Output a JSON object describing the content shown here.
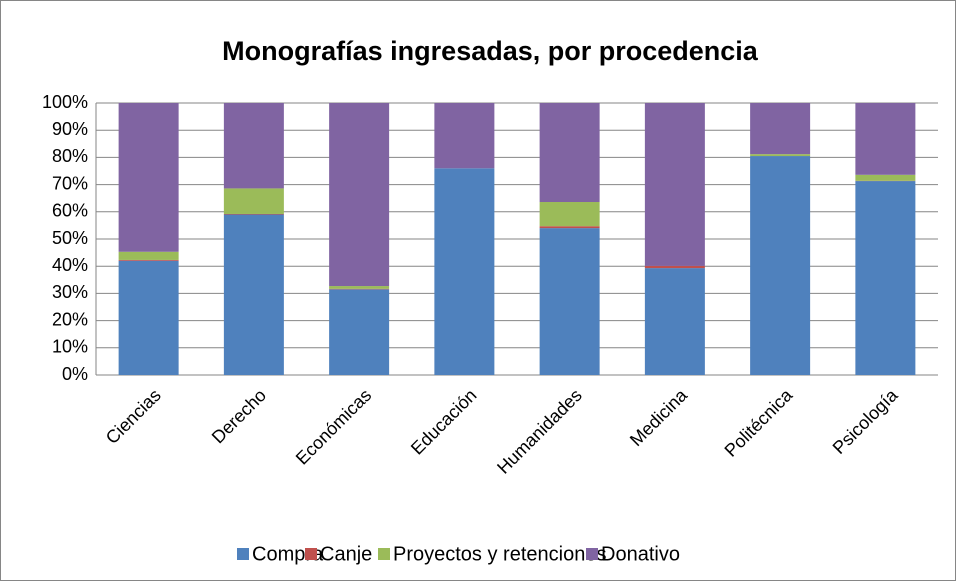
{
  "chart_data": {
    "type": "stacked_bar",
    "title": "Monografías ingresadas, por procedencia",
    "categories": [
      "Ciencias",
      "Derecho",
      "Económicas",
      "Educación",
      "Humanidades",
      "Medicina",
      "Politécnica",
      "Psicología"
    ],
    "series": [
      {
        "name": "Compra",
        "color": "#4f81bd",
        "values": [
          42,
          59,
          31.5,
          76,
          54,
          39.3,
          80.5,
          71.3
        ]
      },
      {
        "name": "Canje",
        "color": "#c0504d",
        "values": [
          0.3,
          0.2,
          0.2,
          0,
          0.7,
          0.8,
          0,
          0.1
        ]
      },
      {
        "name": "Proyectos y retenciones",
        "color": "#9bbb59",
        "values": [
          3,
          9.4,
          1,
          0,
          8.9,
          0,
          0.7,
          2.2
        ]
      },
      {
        "name": "Donativo",
        "color": "#8064a2",
        "values": [
          54.7,
          31.4,
          67.3,
          24,
          36.4,
          59.9,
          18.8,
          26.4
        ]
      }
    ],
    "ylim": [
      0,
      100
    ],
    "yticks": [
      {
        "value": 0,
        "label": "0%"
      },
      {
        "value": 10,
        "label": "10%"
      },
      {
        "value": 20,
        "label": "20%"
      },
      {
        "value": 30,
        "label": "30%"
      },
      {
        "value": 40,
        "label": "40%"
      },
      {
        "value": 50,
        "label": "50%"
      },
      {
        "value": 60,
        "label": "60%"
      },
      {
        "value": 70,
        "label": "70%"
      },
      {
        "value": 80,
        "label": "80%"
      },
      {
        "value": 90,
        "label": "90%"
      },
      {
        "value": 100,
        "label": "100%"
      }
    ],
    "grid": true,
    "legend": "bottom"
  }
}
